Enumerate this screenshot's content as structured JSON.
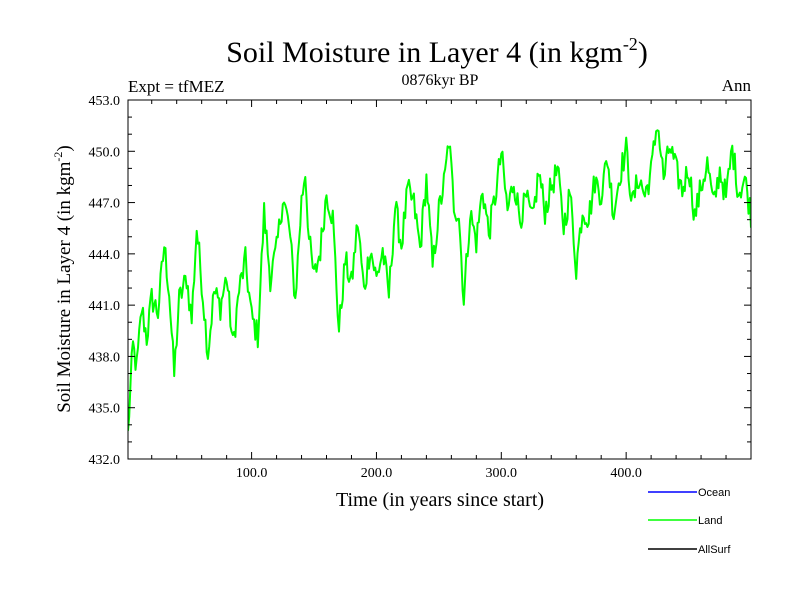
{
  "chart_data": {
    "type": "line",
    "title": "Soil Moisture in Layer 4 (in kgm",
    "title_exponent": "-2",
    "title_suffix": ")",
    "subtitle_left": "Expt = tfMEZ",
    "subtitle_center": "0876kyr BP",
    "subtitle_right": "Ann",
    "xlabel": "Time (in years since start)",
    "ylabel": "Soil Moisture in Layer 4 (in kgm",
    "ylabel_exponent": "-2",
    "ylabel_suffix": ")",
    "xlim": [
      1,
      500
    ],
    "ylim": [
      432,
      453
    ],
    "x_major_ticks": [
      100,
      200,
      300,
      400
    ],
    "x_tick_labels": [
      "100.0",
      "200.0",
      "300.0",
      "400.0"
    ],
    "y_major_ticks": [
      432,
      435,
      438,
      441,
      444,
      447,
      450,
      453
    ],
    "y_tick_labels": [
      "432.0",
      "435.0",
      "438.0",
      "441.0",
      "444.0",
      "447.0",
      "450.0",
      "453.0"
    ],
    "legend_position": "bottom-right",
    "legend": [
      {
        "name": "Ocean",
        "color": "#0000ff"
      },
      {
        "name": "Land",
        "color": "#00ff00"
      },
      {
        "name": "AllSurf",
        "color": "#000000"
      }
    ],
    "series": [
      {
        "name": "Land",
        "color": "#00ff00",
        "anchors": [
          [
            1,
            433.4
          ],
          [
            3,
            436.2
          ],
          [
            5,
            438.6
          ],
          [
            8,
            437.3
          ],
          [
            12,
            440.8
          ],
          [
            16,
            439.1
          ],
          [
            20,
            441.4
          ],
          [
            25,
            440.6
          ],
          [
            30,
            444.5
          ],
          [
            34,
            441.8
          ],
          [
            38,
            436.9
          ],
          [
            42,
            441.3
          ],
          [
            48,
            442.6
          ],
          [
            52,
            440.1
          ],
          [
            56,
            445.5
          ],
          [
            60,
            442.4
          ],
          [
            65,
            438.2
          ],
          [
            70,
            441.8
          ],
          [
            75,
            440.9
          ],
          [
            80,
            442.7
          ],
          [
            85,
            438.6
          ],
          [
            90,
            441.9
          ],
          [
            95,
            443.6
          ],
          [
            100,
            440.3
          ],
          [
            105,
            439.2
          ],
          [
            110,
            446.4
          ],
          [
            115,
            442.6
          ],
          [
            120,
            444.2
          ],
          [
            125,
            447.3
          ],
          [
            130,
            445.6
          ],
          [
            135,
            441.3
          ],
          [
            140,
            447.1
          ],
          [
            143,
            448.9
          ],
          [
            146,
            444.8
          ],
          [
            150,
            442.6
          ],
          [
            155,
            444.2
          ],
          [
            160,
            447.6
          ],
          [
            165,
            446.1
          ],
          [
            170,
            439.5
          ],
          [
            175,
            443.6
          ],
          [
            180,
            442.2
          ],
          [
            185,
            445.9
          ],
          [
            190,
            441.8
          ],
          [
            195,
            444.4
          ],
          [
            200,
            442.5
          ],
          [
            205,
            444.2
          ],
          [
            210,
            441.6
          ],
          [
            215,
            446.8
          ],
          [
            220,
            444.5
          ],
          [
            225,
            447.7
          ],
          [
            230,
            446.9
          ],
          [
            235,
            444.3
          ],
          [
            240,
            448.4
          ],
          [
            245,
            443.2
          ],
          [
            250,
            446.5
          ],
          [
            255,
            448.5
          ],
          [
            258,
            450.7
          ],
          [
            262,
            446.9
          ],
          [
            266,
            446.3
          ],
          [
            270,
            441.3
          ],
          [
            275,
            446.4
          ],
          [
            280,
            444.7
          ],
          [
            285,
            447.8
          ],
          [
            290,
            445.2
          ],
          [
            295,
            447.3
          ],
          [
            300,
            449.9
          ],
          [
            305,
            446.5
          ],
          [
            310,
            448.3
          ],
          [
            315,
            446.1
          ],
          [
            320,
            447.2
          ],
          [
            325,
            445.9
          ],
          [
            330,
            448.8
          ],
          [
            335,
            446.5
          ],
          [
            340,
            447.9
          ],
          [
            345,
            448.9
          ],
          [
            350,
            445.6
          ],
          [
            355,
            447.6
          ],
          [
            360,
            443.2
          ],
          [
            365,
            446.6
          ],
          [
            370,
            446.1
          ],
          [
            375,
            448.3
          ],
          [
            380,
            447.5
          ],
          [
            385,
            449.6
          ],
          [
            390,
            446.4
          ],
          [
            395,
            448.7
          ],
          [
            400,
            450.1
          ],
          [
            405,
            446.9
          ],
          [
            410,
            448.5
          ],
          [
            415,
            447.4
          ],
          [
            420,
            448.8
          ],
          [
            425,
            451.8
          ],
          [
            430,
            448.4
          ],
          [
            435,
            450.3
          ],
          [
            440,
            448.9
          ],
          [
            445,
            447.7
          ],
          [
            450,
            449.1
          ],
          [
            455,
            446.2
          ],
          [
            460,
            447.9
          ],
          [
            465,
            449.3
          ],
          [
            470,
            446.8
          ],
          [
            475,
            448.9
          ],
          [
            480,
            447.3
          ],
          [
            485,
            450.2
          ],
          [
            490,
            447.6
          ],
          [
            495,
            448.4
          ],
          [
            500,
            446.3
          ]
        ]
      }
    ]
  }
}
